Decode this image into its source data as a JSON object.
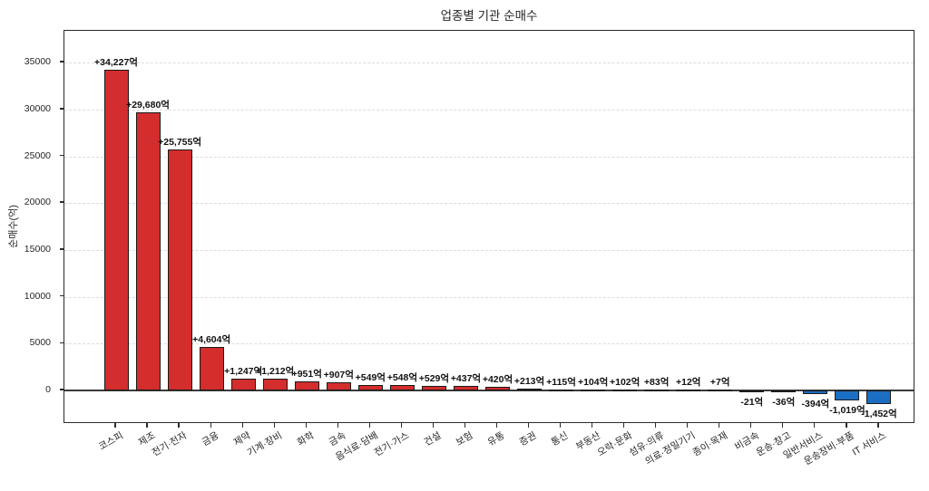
{
  "chart_data": {
    "type": "bar",
    "title": "업종별 기관 순매수",
    "xlabel": "",
    "ylabel": "순매수(억)",
    "categories": [
      "코스피",
      "제조",
      "전기·전자",
      "금융",
      "제약",
      "기계·장비",
      "화학",
      "금속",
      "음식료·담배",
      "전기·가스",
      "건설",
      "보험",
      "유통",
      "증권",
      "통신",
      "부동산",
      "오락·문화",
      "섬유·의류",
      "의료·정밀기기",
      "종이·목재",
      "비금속",
      "운송·창고",
      "일반서비스",
      "운송장비·부품",
      "IT 서비스"
    ],
    "values": [
      34227,
      29680,
      25755,
      4604,
      1247,
      1212,
      951,
      907,
      549,
      548,
      529,
      437,
      420,
      213,
      115,
      104,
      102,
      83,
      12,
      7,
      -21,
      -36,
      -394,
      -1019,
      -1452
    ],
    "bar_labels": [
      "+34,227억",
      "+29,680억",
      "+25,755억",
      "+4,604억",
      "+1,247억",
      "+1,212억",
      "+951억",
      "+907억",
      "+549억",
      "+548억",
      "+529억",
      "+437억",
      "+420억",
      "+213억",
      "+115억",
      "+104억",
      "+102억",
      "+83억",
      "+12억",
      "+7억",
      "-21억",
      "-36억",
      "-394억",
      "-1,019억",
      "-1,452억"
    ],
    "yticks": [
      0,
      5000,
      10000,
      15000,
      20000,
      25000,
      30000,
      35000
    ],
    "ylim": [
      -3580,
      38390
    ],
    "grid": "horizontal-dashed",
    "legend": "none",
    "colors": {
      "positive_bar": "#d32d2d",
      "negative_bar": "#1b6ec2",
      "bar_edge": "#1a1a1a",
      "grid_line": "#dcdcdc",
      "zero_line": "#3a3a3a",
      "spine": "#2b2b2b",
      "text": "#262626"
    }
  }
}
